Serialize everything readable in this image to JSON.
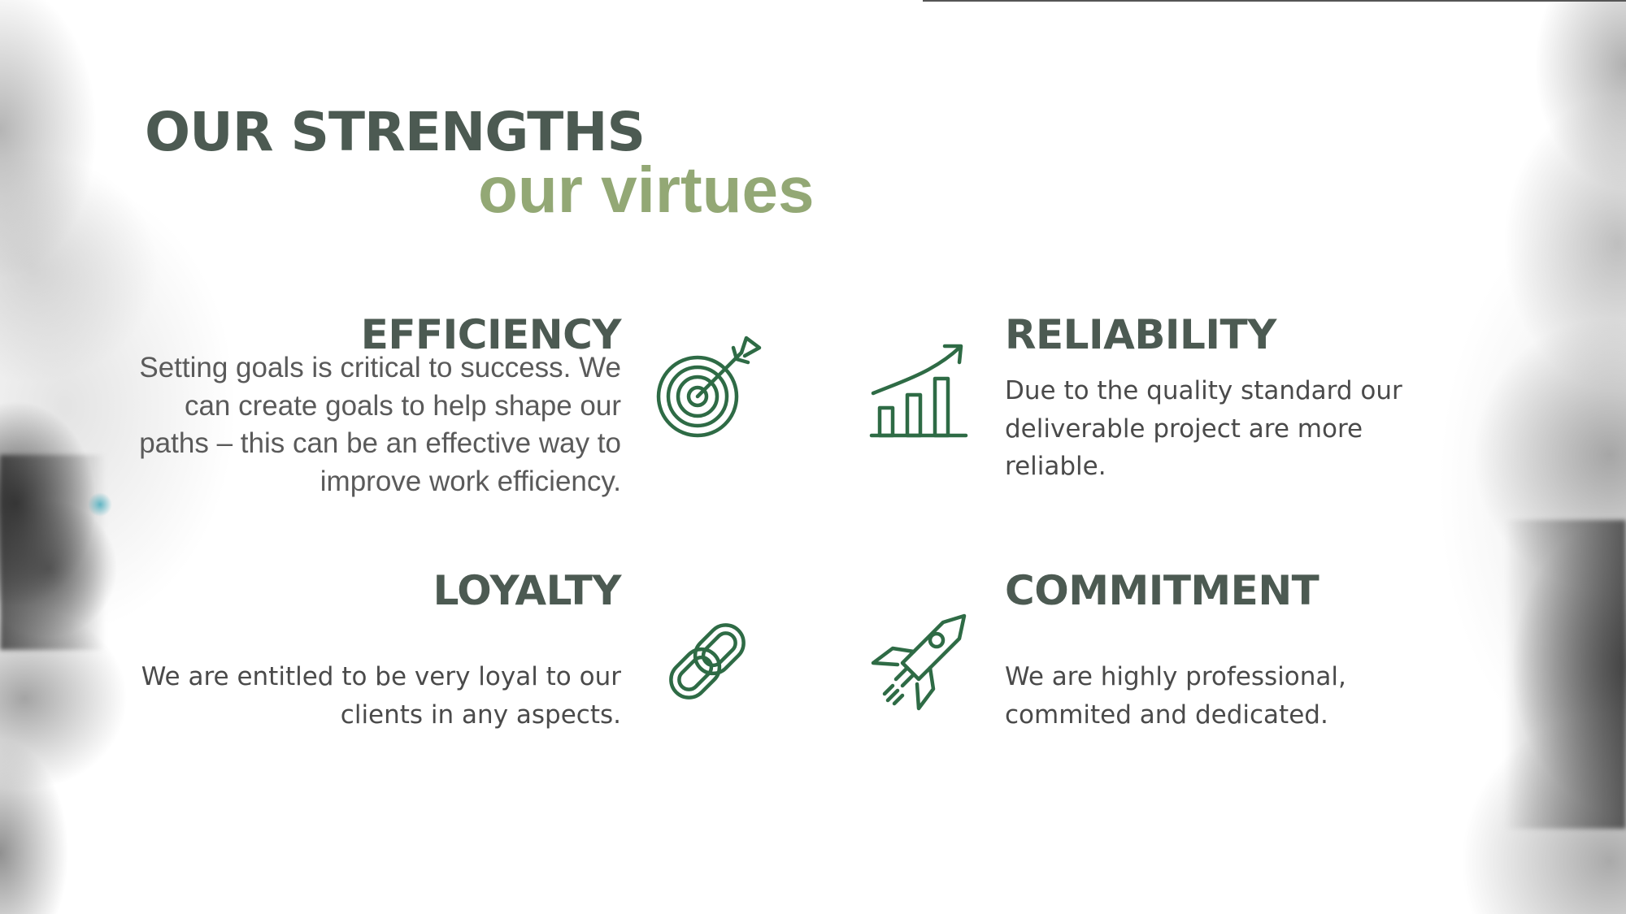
{
  "title": {
    "main": "OUR STRENGTHS",
    "sub": "our virtues"
  },
  "sections": {
    "efficiency": {
      "heading": "EFFICIENCY",
      "text": "Setting goals  is critical to success. We can create goals to help shape our paths – this can be an effective way to improve work efficiency.",
      "icon": "target-icon"
    },
    "reliability": {
      "heading": "RELIABILITY",
      "text": "Due to the quality standard our deliverable project are more reliable.",
      "icon": "growth-chart-icon"
    },
    "loyalty": {
      "heading": "LOYALTY",
      "text": "We are entitled to be very loyal to our clients in any aspects.",
      "icon": "chain-link-icon"
    },
    "commitment": {
      "heading": "COMMITMENT",
      "text": "We are highly professional, commited and dedicated.",
      "icon": "rocket-icon"
    }
  },
  "colors": {
    "heading": "#4c5a52",
    "subtitle": "#93a875",
    "icon": "#2e6b45",
    "body": "#4a4a4a"
  }
}
